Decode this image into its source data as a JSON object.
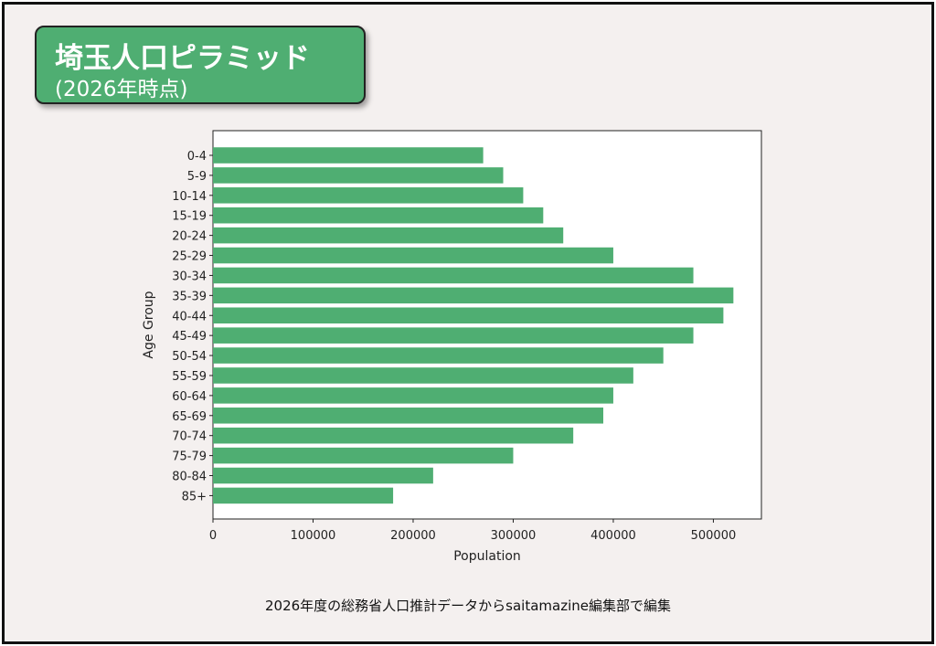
{
  "title": {
    "main": "埼玉人口ピラミッド",
    "sub": "(2026年時点)"
  },
  "footer": "2026年度の総務省人口推計データからsaitamazine編集部で編集",
  "colors": {
    "bar": "#4fae72",
    "title_bg": "#4fae72"
  },
  "chart_data": {
    "type": "bar",
    "orientation": "horizontal",
    "categories": [
      "0-4",
      "5-9",
      "10-14",
      "15-19",
      "20-24",
      "25-29",
      "30-34",
      "35-39",
      "40-44",
      "45-49",
      "50-54",
      "55-59",
      "60-64",
      "65-69",
      "70-74",
      "75-79",
      "80-84",
      "85+"
    ],
    "values": [
      270000,
      290000,
      310000,
      330000,
      350000,
      400000,
      480000,
      520000,
      510000,
      480000,
      450000,
      420000,
      400000,
      390000,
      360000,
      300000,
      220000,
      180000
    ],
    "xlabel": "Population",
    "ylabel": "Age Group",
    "xticks": [
      0,
      100000,
      200000,
      300000,
      400000,
      500000
    ],
    "xlim": [
      0,
      548000
    ]
  }
}
